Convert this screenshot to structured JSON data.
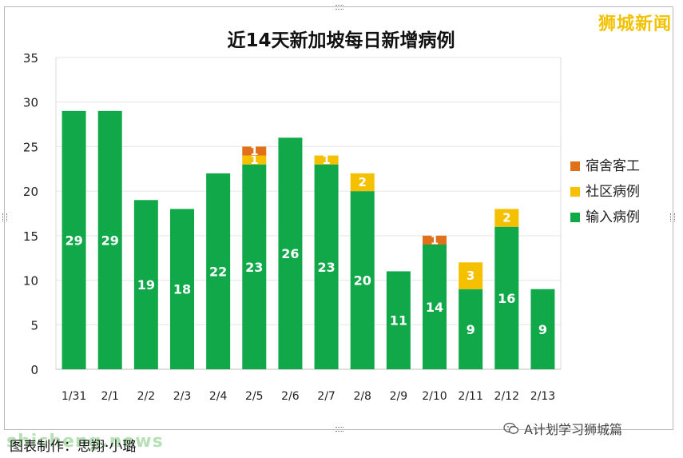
{
  "chart_data": {
    "type": "stacked_bar",
    "title": "近14天新加坡每日新增病例",
    "categories": [
      "1/31",
      "2/1",
      "2/2",
      "2/3",
      "2/4",
      "2/5",
      "2/6",
      "2/7",
      "2/8",
      "2/9",
      "2/10",
      "2/11",
      "2/12",
      "2/13"
    ],
    "series": [
      {
        "name": "输入病例",
        "color": "#11a84a",
        "values": [
          29,
          29,
          19,
          18,
          22,
          23,
          26,
          23,
          20,
          11,
          14,
          9,
          16,
          9
        ]
      },
      {
        "name": "社区病例",
        "color": "#f5c000",
        "values": [
          0,
          0,
          0,
          0,
          0,
          1,
          0,
          1,
          2,
          0,
          0,
          3,
          2,
          0
        ]
      },
      {
        "name": "宿舍客工",
        "color": "#e0701a",
        "values": [
          0,
          0,
          0,
          0,
          0,
          1,
          0,
          0,
          0,
          0,
          1,
          0,
          0,
          0
        ]
      }
    ],
    "legend_order": [
      "宿舍客工",
      "社区病例",
      "输入病例"
    ],
    "ylim": [
      0,
      35
    ],
    "yticks": [
      0,
      5,
      10,
      15,
      20,
      25,
      30,
      35
    ],
    "grid": true,
    "legend_position": "right"
  },
  "overlay": {
    "top_watermark": "狮城新闻",
    "wechat_label": "A计划学习狮城篇",
    "credit": "图表制作：思翔·小璐",
    "site_watermark": "shicheng.news"
  }
}
